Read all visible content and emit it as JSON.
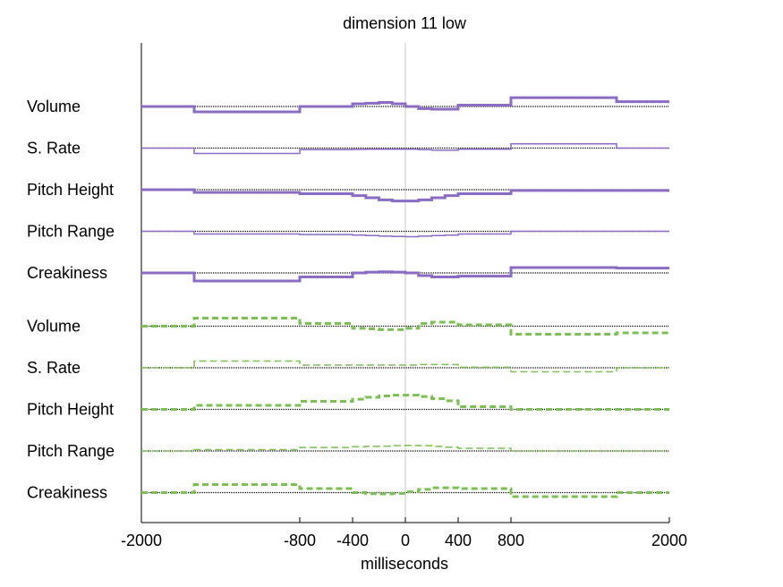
{
  "chart_data": {
    "type": "line",
    "title": "dimension 11 low",
    "xlabel": "milliseconds",
    "ylabel": "",
    "xlim": [
      -2000,
      2000
    ],
    "x_ticks": [
      -2000,
      -800,
      -400,
      0,
      400,
      800,
      2000
    ],
    "x_tick_labels": [
      "-2000",
      "-800",
      "-400",
      "0",
      "400",
      "800",
      "2000"
    ],
    "grid": false,
    "vertical_reference_line_at": 0,
    "colors": {
      "purple": "#8a6cc3",
      "green": "#7cbf55",
      "baseline": "#000000",
      "reference": "#c8c8c8"
    },
    "step_boundaries": [
      -2000,
      -1600,
      -800,
      -400,
      -100,
      100,
      400,
      800,
      1600,
      2000
    ],
    "tracks": [
      {
        "label": "Volume",
        "color": "purple",
        "style": "solid",
        "width": "thick",
        "x": [
          -2000,
          -1600,
          -800,
          -400,
          -300,
          -200,
          -100,
          0,
          100,
          200,
          300,
          400,
          800,
          1600,
          2000
        ],
        "values": [
          0.0,
          -2.0,
          0.0,
          1.0,
          1.2,
          1.5,
          1.0,
          0.0,
          -0.8,
          -1.0,
          -1.0,
          0.5,
          3.3,
          1.8,
          0.0
        ]
      },
      {
        "label": "S. Rate",
        "color": "purple",
        "style": "solid",
        "width": "thin",
        "x": [
          -2000,
          -1600,
          -800,
          -400,
          -300,
          -200,
          -100,
          0,
          100,
          200,
          300,
          400,
          800,
          1600,
          2000
        ],
        "values": [
          0.0,
          -2.0,
          -0.6,
          -0.5,
          -0.4,
          -0.4,
          -0.4,
          -0.4,
          -0.6,
          -0.8,
          -0.8,
          -0.4,
          1.6,
          0.0,
          0.0
        ]
      },
      {
        "label": "Pitch Height",
        "color": "purple",
        "style": "solid",
        "width": "thick",
        "x": [
          -2000,
          -1600,
          -800,
          -400,
          -300,
          -200,
          -100,
          0,
          100,
          200,
          300,
          400,
          800,
          1600,
          2000
        ],
        "values": [
          0.0,
          -1.0,
          -1.5,
          -2.2,
          -3.0,
          -3.8,
          -4.2,
          -4.2,
          -3.8,
          -3.0,
          -2.2,
          -1.5,
          -0.3,
          -0.3,
          0.0
        ]
      },
      {
        "label": "Pitch Range",
        "color": "purple",
        "style": "solid",
        "width": "thin",
        "x": [
          -2000,
          -1600,
          -800,
          -400,
          -300,
          -200,
          -100,
          0,
          100,
          200,
          300,
          400,
          800,
          1600,
          2000
        ],
        "values": [
          0.0,
          -1.0,
          -1.2,
          -1.4,
          -1.6,
          -1.8,
          -1.9,
          -2.0,
          -1.8,
          -1.6,
          -1.4,
          -1.0,
          0.0,
          0.0,
          0.0
        ]
      },
      {
        "label": "Creakiness",
        "color": "purple",
        "style": "solid",
        "width": "thick",
        "x": [
          -2000,
          -1600,
          -800,
          -400,
          -300,
          -200,
          -100,
          0,
          100,
          200,
          300,
          400,
          800,
          1600,
          2000
        ],
        "values": [
          0.0,
          -3.0,
          -1.5,
          0.0,
          0.3,
          0.4,
          0.3,
          0.0,
          -1.0,
          -1.5,
          -1.5,
          -1.2,
          2.0,
          1.8,
          0.0
        ]
      },
      {
        "label": "Volume",
        "color": "green",
        "style": "dashed",
        "width": "thick",
        "x": [
          -2000,
          -1600,
          -800,
          -400,
          -300,
          -200,
          -100,
          0,
          100,
          200,
          300,
          400,
          800,
          1600,
          2000
        ],
        "values": [
          0.0,
          3.0,
          1.0,
          -0.8,
          -1.0,
          -1.3,
          -1.3,
          -0.8,
          1.0,
          1.5,
          1.5,
          0.5,
          -3.0,
          -2.5,
          -2.0
        ]
      },
      {
        "label": "S. Rate",
        "color": "green",
        "style": "dashed",
        "width": "thin",
        "x": [
          -2000,
          -1600,
          -800,
          -400,
          -300,
          -200,
          -100,
          0,
          100,
          200,
          300,
          400,
          800,
          1600,
          2000
        ],
        "values": [
          0.0,
          2.5,
          1.0,
          1.0,
          1.0,
          1.0,
          1.0,
          1.0,
          1.2,
          1.2,
          1.2,
          0.2,
          -1.5,
          0.0,
          0.0
        ]
      },
      {
        "label": "Pitch Height",
        "color": "green",
        "style": "dashed",
        "width": "thick",
        "x": [
          -2000,
          -1600,
          -800,
          -400,
          -300,
          -200,
          -100,
          0,
          100,
          200,
          300,
          400,
          800,
          1600,
          2000
        ],
        "values": [
          0.0,
          1.5,
          3.0,
          3.8,
          4.5,
          5.0,
          5.3,
          5.3,
          4.8,
          4.0,
          3.2,
          1.0,
          0.0,
          0.0,
          0.0
        ]
      },
      {
        "label": "Pitch Range",
        "color": "green",
        "style": "dashed",
        "width": "thin",
        "x": [
          -2000,
          -1600,
          -800,
          -400,
          -300,
          -200,
          -100,
          0,
          100,
          200,
          300,
          400,
          800,
          1600,
          2000
        ],
        "values": [
          0.0,
          0.5,
          1.3,
          1.6,
          1.7,
          1.8,
          2.0,
          2.1,
          2.0,
          1.7,
          1.4,
          1.0,
          0.0,
          0.0,
          0.0
        ]
      },
      {
        "label": "Creakiness",
        "color": "green",
        "style": "dashed",
        "width": "thick",
        "x": [
          -2000,
          -1600,
          -800,
          -400,
          -300,
          -200,
          -100,
          0,
          100,
          200,
          300,
          400,
          800,
          1600,
          2000
        ],
        "values": [
          0.0,
          3.0,
          1.5,
          0.0,
          -0.4,
          -0.5,
          -0.3,
          0.3,
          1.2,
          1.8,
          1.8,
          1.5,
          -1.5,
          0.0,
          0.0
        ]
      }
    ]
  }
}
